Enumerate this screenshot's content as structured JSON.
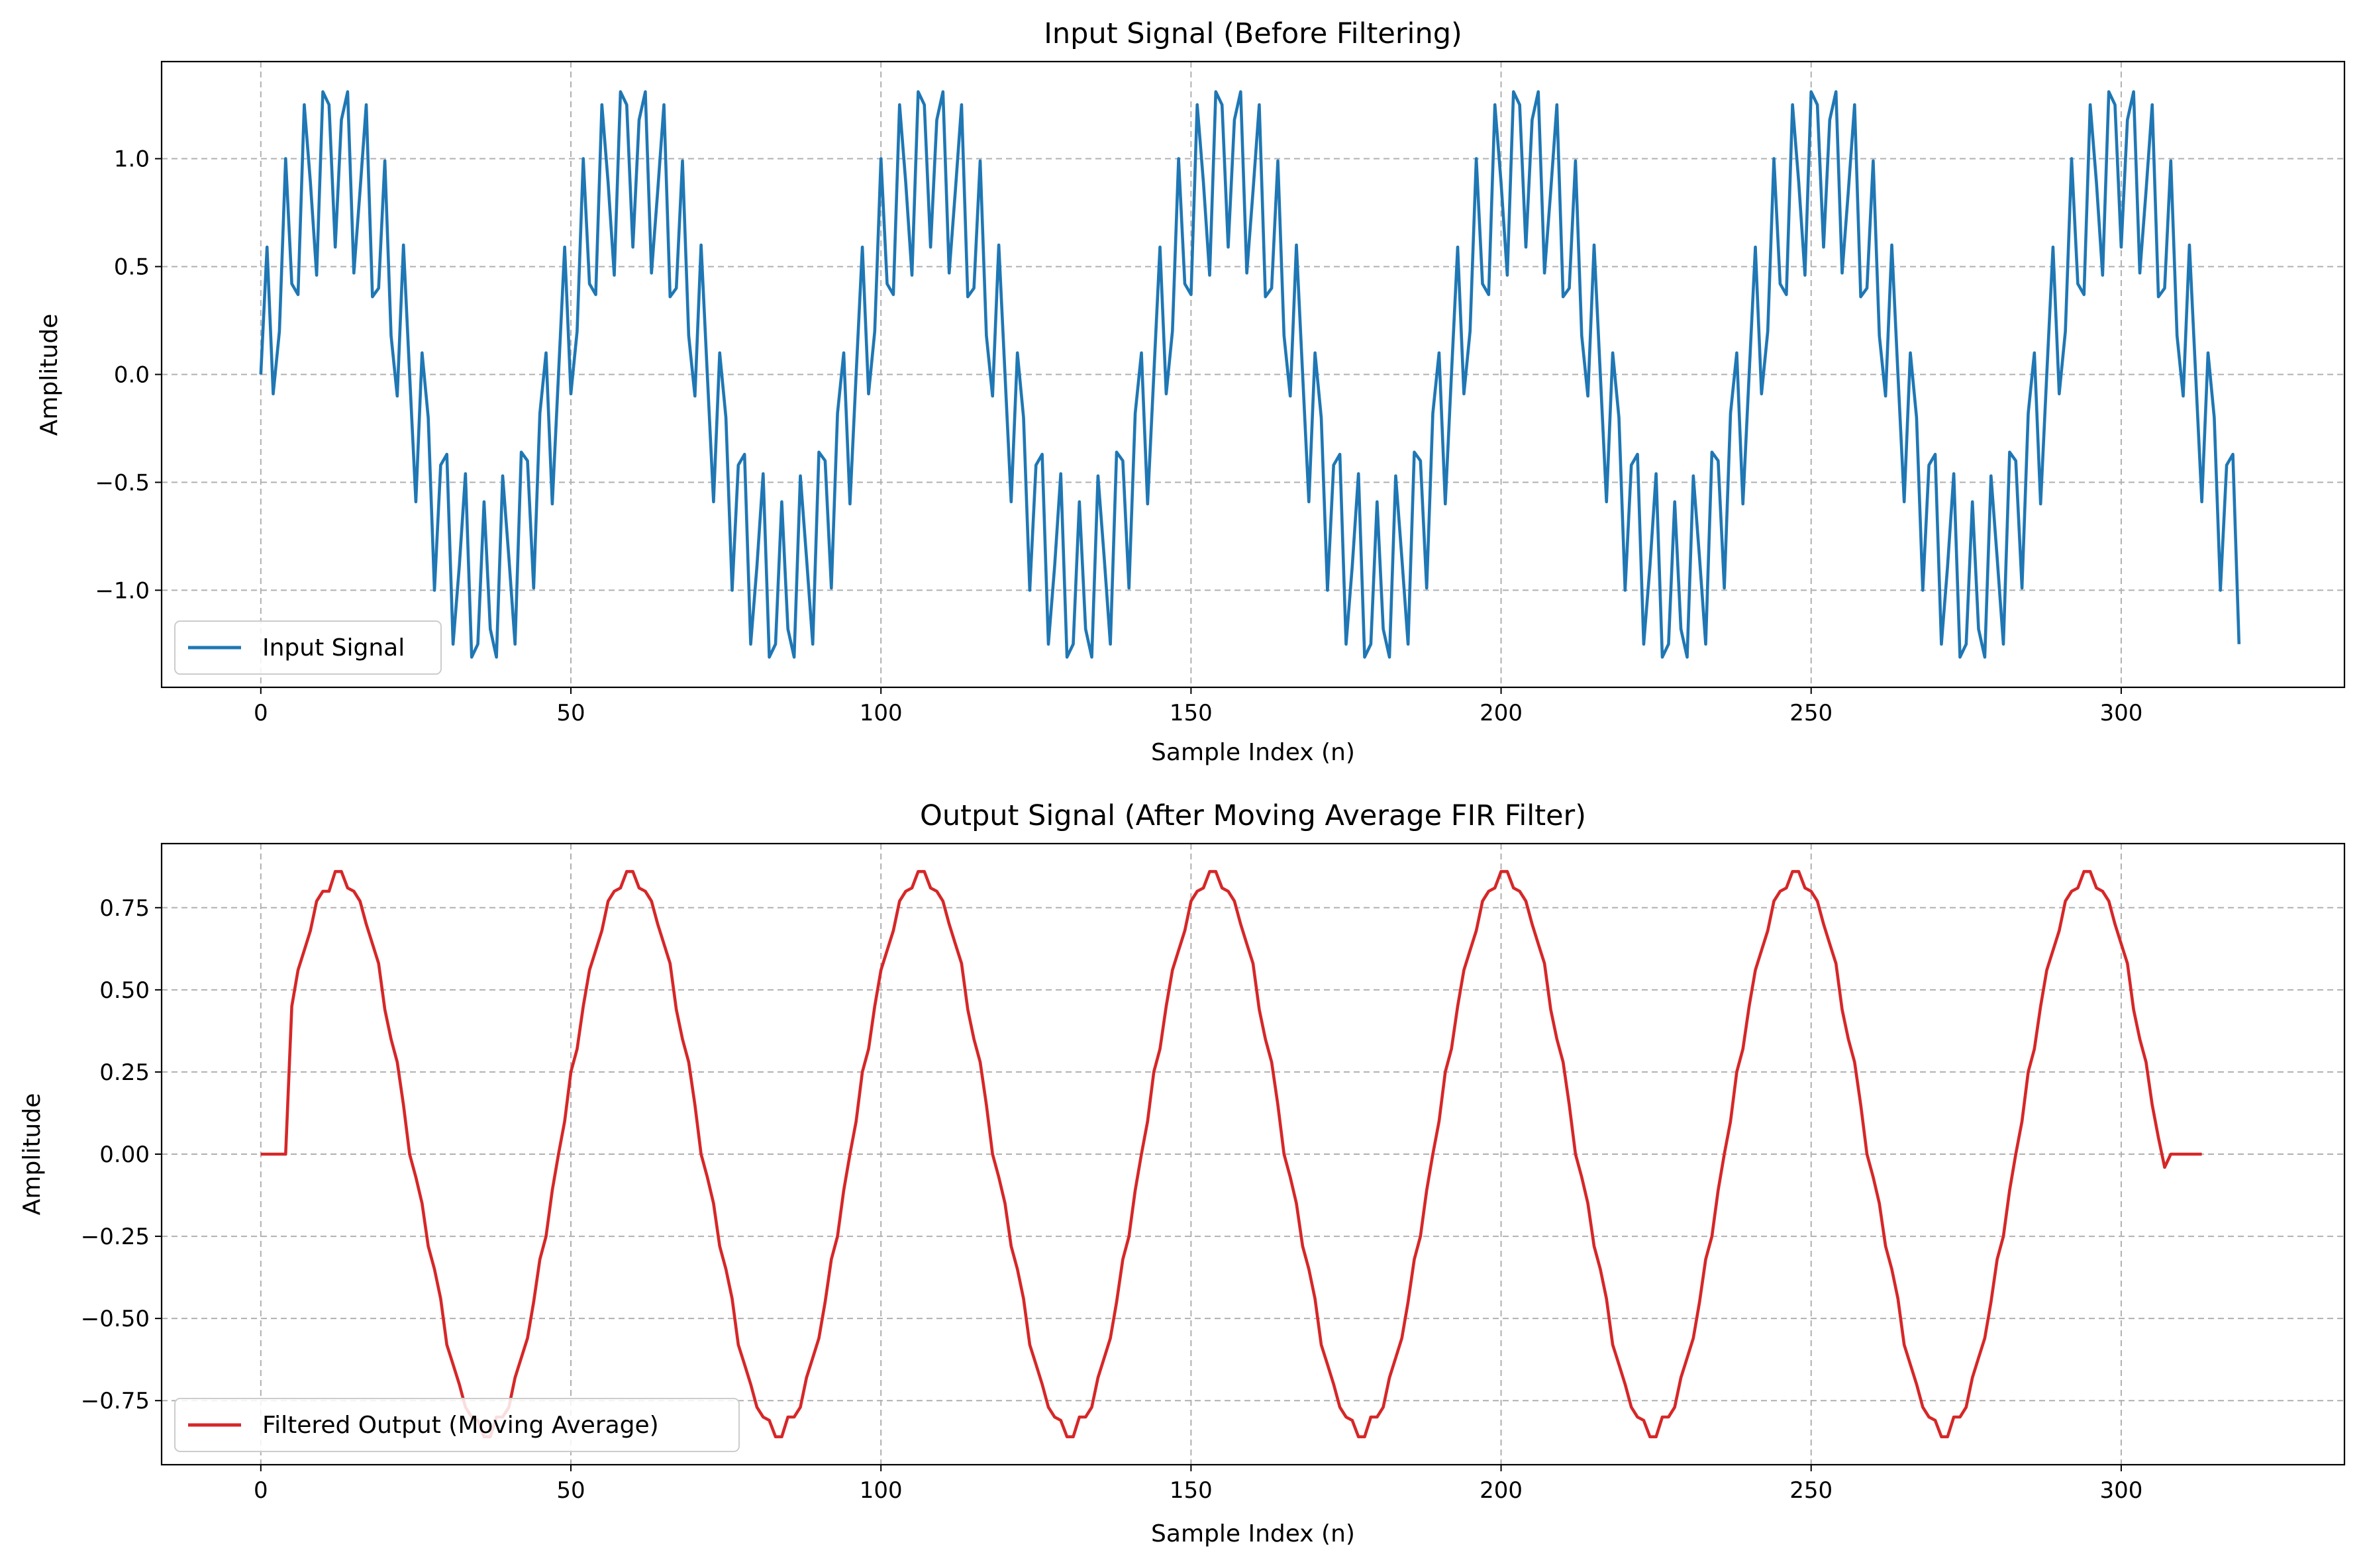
{
  "chart_data": [
    {
      "type": "line",
      "title": "Input Signal (Before Filtering)",
      "xlabel": "Sample Index (n)",
      "ylabel": "Amplitude",
      "xlim": [
        -16,
        336
      ],
      "ylim": [
        -1.45,
        1.45
      ],
      "xticks": [
        0,
        50,
        100,
        150,
        200,
        250,
        300
      ],
      "yticks": [
        -1.0,
        -0.5,
        0.0,
        0.5,
        1.0
      ],
      "ytick_labels": [
        "−1.0",
        "−0.5",
        "0.0",
        "0.5",
        "1.0"
      ],
      "grid": true,
      "legend": "lower-left",
      "series": [
        {
          "name": "Input Signal",
          "color": "#1f77b4",
          "x_start": 0,
          "x_step": 1,
          "values": [
            0.0,
            0.59,
            -0.09,
            0.2,
            1.0,
            0.42,
            0.37,
            1.25,
            0.89,
            0.46,
            1.31,
            1.25,
            0.59,
            1.18,
            1.31,
            0.47,
            0.85,
            1.25,
            0.36,
            0.4,
            0.99,
            0.18,
            -0.1,
            0.6,
            0.0,
            -0.59,
            0.1,
            -0.2,
            -1.0,
            -0.42,
            -0.37,
            -1.25,
            -0.89,
            -0.46,
            -1.31,
            -1.25,
            -0.59,
            -1.18,
            -1.31,
            -0.47,
            -0.85,
            -1.25,
            -0.36,
            -0.4,
            -0.99,
            -0.18,
            0.1,
            -0.6,
            0.0,
            0.59,
            -0.09,
            0.2,
            1.0,
            0.42,
            0.37,
            1.25,
            0.89,
            0.46,
            1.31,
            1.25,
            0.59,
            1.18,
            1.31,
            0.47,
            0.85,
            1.25,
            0.36,
            0.4,
            0.99,
            0.18,
            -0.1,
            0.6,
            0.0,
            -0.59,
            0.1,
            -0.2,
            -1.0,
            -0.42,
            -0.37,
            -1.25,
            -0.89,
            -0.46,
            -1.31,
            -1.25,
            -0.59,
            -1.18,
            -1.31,
            -0.47,
            -0.85,
            -1.25,
            -0.36,
            -0.4,
            -0.99,
            -0.18,
            0.1,
            -0.6,
            0.0,
            0.59,
            -0.09,
            0.2,
            1.0,
            0.42,
            0.37,
            1.25,
            0.89,
            0.46,
            1.31,
            1.25,
            0.59,
            1.18,
            1.31,
            0.47,
            0.85,
            1.25,
            0.36,
            0.4,
            0.99,
            0.18,
            -0.1,
            0.6,
            0.0,
            -0.59,
            0.1,
            -0.2,
            -1.0,
            -0.42,
            -0.37,
            -1.25,
            -0.89,
            -0.46,
            -1.31,
            -1.25,
            -0.59,
            -1.18,
            -1.31,
            -0.47,
            -0.85,
            -1.25,
            -0.36,
            -0.4,
            -0.99,
            -0.18,
            0.1,
            -0.6,
            0.0,
            0.59,
            -0.09,
            0.2,
            1.0,
            0.42,
            0.37,
            1.25,
            0.89,
            0.46,
            1.31,
            1.25,
            0.59,
            1.18,
            1.31,
            0.47,
            0.85,
            1.25,
            0.36,
            0.4,
            0.99,
            0.18,
            -0.1,
            0.6,
            0.0,
            -0.59,
            0.1,
            -0.2,
            -1.0,
            -0.42,
            -0.37,
            -1.25,
            -0.89,
            -0.46,
            -1.31,
            -1.25,
            -0.59,
            -1.18,
            -1.31,
            -0.47,
            -0.85,
            -1.25,
            -0.36,
            -0.4,
            -0.99,
            -0.18,
            0.1,
            -0.6,
            0.0,
            0.59,
            -0.09,
            0.2,
            1.0,
            0.42,
            0.37,
            1.25,
            0.89,
            0.46,
            1.31,
            1.25,
            0.59,
            1.18,
            1.31,
            0.47,
            0.85,
            1.25,
            0.36,
            0.4,
            0.99,
            0.18,
            -0.1,
            0.6,
            0.0,
            -0.59,
            0.1,
            -0.2,
            -1.0,
            -0.42,
            -0.37,
            -1.25,
            -0.89,
            -0.46,
            -1.31,
            -1.25,
            -0.59,
            -1.18,
            -1.31,
            -0.47,
            -0.85,
            -1.25,
            -0.36,
            -0.4,
            -0.99,
            -0.18,
            0.1,
            -0.6,
            0.0,
            0.59,
            -0.09,
            0.2,
            1.0,
            0.42,
            0.37,
            1.25,
            0.89,
            0.46,
            1.31,
            1.25,
            0.59,
            1.18,
            1.31,
            0.47,
            0.85,
            1.25,
            0.36,
            0.4,
            0.99,
            0.18,
            -0.1,
            0.6,
            0.0,
            -0.59,
            0.1,
            -0.2,
            -1.0,
            -0.42,
            -0.37,
            -1.25,
            -0.89,
            -0.46,
            -1.31,
            -1.25,
            -0.59,
            -1.18,
            -1.31,
            -0.47,
            -0.85,
            -1.25,
            -0.36,
            -0.4,
            -0.99,
            -0.18,
            0.1,
            -0.6,
            0.0,
            0.59,
            -0.09,
            0.2,
            1.0,
            0.42,
            0.37,
            1.25,
            0.89,
            0.46,
            1.31,
            1.25,
            0.59,
            1.18,
            1.31,
            0.47,
            0.85,
            1.25,
            0.36,
            0.4,
            0.99,
            0.18,
            -0.1,
            0.6,
            0.0,
            -0.59,
            0.1,
            -0.2,
            -1.0,
            -0.42,
            -0.37,
            -1.25
          ]
        }
      ]
    },
    {
      "type": "line",
      "title": "Output Signal (After Moving Average FIR Filter)",
      "xlabel": "Sample Index (n)",
      "ylabel": "Amplitude",
      "xlim": [
        -16,
        336
      ],
      "ylim": [
        -0.945,
        0.945
      ],
      "xticks": [
        0,
        50,
        100,
        150,
        200,
        250,
        300
      ],
      "yticks": [
        -0.75,
        -0.5,
        -0.25,
        0.0,
        0.25,
        0.5,
        0.75
      ],
      "ytick_labels": [
        "−0.75",
        "−0.50",
        "−0.25",
        "0.00",
        "0.25",
        "0.50",
        "0.75"
      ],
      "grid": true,
      "legend": "lower-left",
      "series": [
        {
          "name": "Filtered Output (Moving Average)",
          "color": "#d62728",
          "x_start": 0,
          "x_step": 1,
          "values": [
            0.0,
            0.0,
            0.0,
            0.0,
            0.0,
            0.45,
            0.56,
            0.62,
            0.68,
            0.77,
            0.8,
            0.8,
            0.86,
            0.86,
            0.81,
            0.8,
            0.77,
            0.7,
            0.64,
            0.58,
            0.44,
            0.35,
            0.28,
            0.15,
            0.0,
            -0.07,
            -0.15,
            -0.28,
            -0.35,
            -0.44,
            -0.58,
            -0.64,
            -0.7,
            -0.77,
            -0.8,
            -0.81,
            -0.86,
            -0.86,
            -0.8,
            -0.8,
            -0.77,
            -0.68,
            -0.62,
            -0.56,
            -0.45,
            -0.32,
            -0.25,
            -0.11,
            0.0,
            0.1,
            0.25,
            0.32,
            0.45,
            0.56,
            0.62,
            0.68,
            0.77,
            0.8,
            0.81,
            0.86,
            0.86,
            0.81,
            0.8,
            0.77,
            0.7,
            0.64,
            0.58,
            0.44,
            0.35,
            0.28,
            0.15,
            0.0,
            -0.07,
            -0.15,
            -0.28,
            -0.35,
            -0.44,
            -0.58,
            -0.64,
            -0.7,
            -0.77,
            -0.8,
            -0.81,
            -0.86,
            -0.86,
            -0.8,
            -0.8,
            -0.77,
            -0.68,
            -0.62,
            -0.56,
            -0.45,
            -0.32,
            -0.25,
            -0.11,
            0.0,
            0.1,
            0.25,
            0.32,
            0.45,
            0.56,
            0.62,
            0.68,
            0.77,
            0.8,
            0.81,
            0.86,
            0.86,
            0.81,
            0.8,
            0.77,
            0.7,
            0.64,
            0.58,
            0.44,
            0.35,
            0.28,
            0.15,
            0.0,
            -0.07,
            -0.15,
            -0.28,
            -0.35,
            -0.44,
            -0.58,
            -0.64,
            -0.7,
            -0.77,
            -0.8,
            -0.81,
            -0.86,
            -0.86,
            -0.8,
            -0.8,
            -0.77,
            -0.68,
            -0.62,
            -0.56,
            -0.45,
            -0.32,
            -0.25,
            -0.11,
            0.0,
            0.1,
            0.25,
            0.32,
            0.45,
            0.56,
            0.62,
            0.68,
            0.77,
            0.8,
            0.81,
            0.86,
            0.86,
            0.81,
            0.8,
            0.77,
            0.7,
            0.64,
            0.58,
            0.44,
            0.35,
            0.28,
            0.15,
            0.0,
            -0.07,
            -0.15,
            -0.28,
            -0.35,
            -0.44,
            -0.58,
            -0.64,
            -0.7,
            -0.77,
            -0.8,
            -0.81,
            -0.86,
            -0.86,
            -0.8,
            -0.8,
            -0.77,
            -0.68,
            -0.62,
            -0.56,
            -0.45,
            -0.32,
            -0.25,
            -0.11,
            0.0,
            0.1,
            0.25,
            0.32,
            0.45,
            0.56,
            0.62,
            0.68,
            0.77,
            0.8,
            0.81,
            0.86,
            0.86,
            0.81,
            0.8,
            0.77,
            0.7,
            0.64,
            0.58,
            0.44,
            0.35,
            0.28,
            0.15,
            0.0,
            -0.07,
            -0.15,
            -0.28,
            -0.35,
            -0.44,
            -0.58,
            -0.64,
            -0.7,
            -0.77,
            -0.8,
            -0.81,
            -0.86,
            -0.86,
            -0.8,
            -0.8,
            -0.77,
            -0.68,
            -0.62,
            -0.56,
            -0.45,
            -0.32,
            -0.25,
            -0.11,
            0.0,
            0.1,
            0.25,
            0.32,
            0.45,
            0.56,
            0.62,
            0.68,
            0.77,
            0.8,
            0.81,
            0.86,
            0.86,
            0.81,
            0.8,
            0.77,
            0.7,
            0.64,
            0.58,
            0.44,
            0.35,
            0.28,
            0.15,
            0.0,
            -0.07,
            -0.15,
            -0.28,
            -0.35,
            -0.44,
            -0.58,
            -0.64,
            -0.7,
            -0.77,
            -0.8,
            -0.81,
            -0.86,
            -0.86,
            -0.8,
            -0.8,
            -0.77,
            -0.68,
            -0.62,
            -0.56,
            -0.45,
            -0.32,
            -0.25,
            -0.11,
            0.0,
            0.1,
            0.25,
            0.32,
            0.45,
            0.56,
            0.62,
            0.68,
            0.77,
            0.8,
            0.81,
            0.86,
            0.86,
            0.81,
            0.8,
            0.77,
            0.7,
            0.64,
            0.58,
            0.44,
            0.35,
            0.28,
            0.15,
            0.05,
            -0.04,
            0.0,
            0.0,
            0.0,
            0.0,
            0.0,
            0.0
          ]
        }
      ]
    }
  ]
}
